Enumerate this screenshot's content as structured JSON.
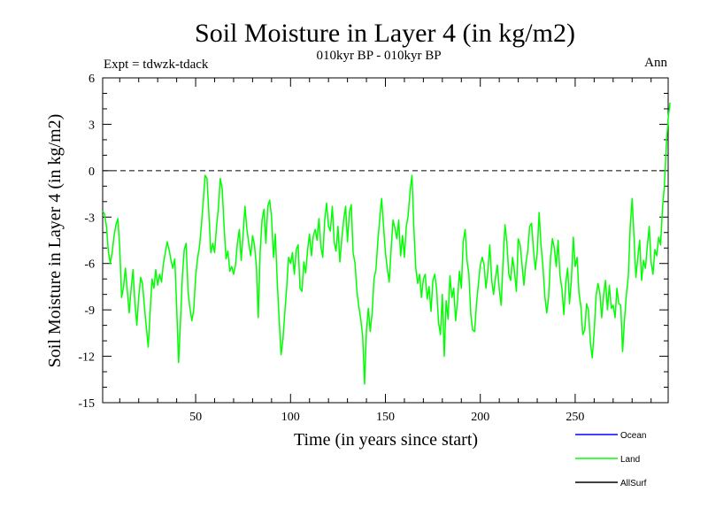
{
  "chart_data": {
    "type": "line",
    "title": "Soil Moisture in Layer 4 (in kg/m2)",
    "subtitle": "010kyr BP - 010kyr BP",
    "expt_label": "Expt = tdwzk-tdack",
    "period_label": "Ann",
    "xlabel": "Time (in years since start)",
    "ylabel": "Soil Moisture in Layer 4 (in kg/m2)",
    "xlim": [
      1,
      299
    ],
    "ylim": [
      -15,
      6
    ],
    "x_ticks": [
      50,
      100,
      150,
      200,
      250
    ],
    "y_ticks": [
      6,
      3,
      0,
      -3,
      -6,
      -9,
      -12,
      -15
    ],
    "reference_line": {
      "y": 0,
      "style": "dashed",
      "color": "#000000"
    },
    "legend": [
      {
        "name": "Ocean",
        "color": "#0000ff"
      },
      {
        "name": "Land",
        "color": "#00ff00"
      },
      {
        "name": "AllSurf",
        "color": "#000000"
      }
    ],
    "series": [
      {
        "name": "Land",
        "color": "#00ff00",
        "x_start": 1,
        "x_step": 1,
        "values": [
          -2.6,
          -2.8,
          -3.6,
          -5.2,
          -6.0,
          -5.3,
          -4.2,
          -3.5,
          -3.1,
          -5.0,
          -8.2,
          -7.5,
          -6.3,
          -7.8,
          -9.2,
          -7.6,
          -6.4,
          -8.6,
          -10.0,
          -8.2,
          -6.9,
          -7.3,
          -8.8,
          -10.1,
          -11.4,
          -9.2,
          -7.0,
          -7.6,
          -6.4,
          -7.4,
          -6.7,
          -7.2,
          -6.0,
          -5.3,
          -4.6,
          -5.1,
          -5.8,
          -6.3,
          -5.7,
          -8.8,
          -12.4,
          -9.8,
          -6.8,
          -5.1,
          -4.7,
          -7.8,
          -8.9,
          -9.7,
          -9.0,
          -6.8,
          -5.7,
          -4.9,
          -3.6,
          -2.0,
          -0.3,
          -0.5,
          -2.9,
          -5.3,
          -4.7,
          -5.3,
          -3.6,
          -2.4,
          -0.5,
          -1.2,
          -3.6,
          -5.7,
          -5.2,
          -6.5,
          -6.2,
          -6.7,
          -6.1,
          -4.7,
          -3.8,
          -5.8,
          -4.1,
          -2.3,
          -3.8,
          -4.7,
          -5.5,
          -4.2,
          -4.8,
          -6.2,
          -9.5,
          -5.2,
          -3.2,
          -2.5,
          -4.7,
          -2.3,
          -1.9,
          -3.0,
          -5.6,
          -4.1,
          -7.2,
          -9.6,
          -11.9,
          -10.9,
          -9.1,
          -7.5,
          -5.6,
          -6.0,
          -5.3,
          -6.7,
          -5.1,
          -4.8,
          -7.6,
          -7.8,
          -5.9,
          -6.6,
          -5.1,
          -4.1,
          -5.5,
          -4.2,
          -3.8,
          -4.5,
          -3.1,
          -4.9,
          -5.6,
          -3.2,
          -2.1,
          -3.6,
          -3.9,
          -2.3,
          -4.6,
          -5.2,
          -3.6,
          -5.9,
          -4.4,
          -3.2,
          -2.3,
          -4.6,
          -2.7,
          -2.2,
          -5.3,
          -6.0,
          -7.8,
          -8.8,
          -9.6,
          -10.7,
          -13.8,
          -10.3,
          -8.9,
          -10.4,
          -9.2,
          -7.0,
          -6.4,
          -4.6,
          -3.1,
          -1.8,
          -3.6,
          -5.3,
          -6.3,
          -7.2,
          -5.1,
          -3.2,
          -3.7,
          -4.4,
          -3.2,
          -5.5,
          -4.2,
          -5.6,
          -3.6,
          -2.9,
          -1.3,
          -0.3,
          -3.8,
          -6.3,
          -7.3,
          -6.7,
          -8.2,
          -7.0,
          -6.7,
          -8.3,
          -7.5,
          -9.1,
          -7.1,
          -6.7,
          -7.7,
          -9.8,
          -10.6,
          -8.0,
          -12.0,
          -8.4,
          -9.6,
          -6.8,
          -8.2,
          -7.6,
          -9.7,
          -8.4,
          -6.5,
          -7.6,
          -4.6,
          -3.8,
          -5.8,
          -6.7,
          -9.3,
          -10.3,
          -10.4,
          -8.6,
          -7.3,
          -6.1,
          -5.6,
          -6.1,
          -7.6,
          -6.5,
          -4.8,
          -7.1,
          -8.0,
          -6.9,
          -6.1,
          -7.7,
          -8.7,
          -5.9,
          -3.5,
          -4.6,
          -6.7,
          -7.1,
          -5.6,
          -6.5,
          -7.8,
          -4.4,
          -4.8,
          -6.1,
          -7.4,
          -6.0,
          -5.2,
          -3.6,
          -3.4,
          -5.1,
          -6.4,
          -5.3,
          -2.7,
          -4.8,
          -6.2,
          -8.1,
          -9.2,
          -8.2,
          -5.6,
          -4.4,
          -5.0,
          -6.2,
          -4.5,
          -6.8,
          -7.6,
          -9.3,
          -7.3,
          -6.3,
          -8.6,
          -7.1,
          -4.3,
          -6.2,
          -5.6,
          -7.9,
          -8.8,
          -10.6,
          -10.3,
          -8.6,
          -9.0,
          -11.1,
          -12.1,
          -10.4,
          -8.1,
          -7.3,
          -7.9,
          -9.5,
          -8.0,
          -7.1,
          -9.0,
          -7.4,
          -8.9,
          -8.7,
          -9.5,
          -7.6,
          -8.6,
          -8.7,
          -11.7,
          -9.6,
          -8.0,
          -6.8,
          -3.6,
          -1.8,
          -4.3,
          -6.9,
          -5.6,
          -4.5,
          -7.1,
          -5.8,
          -6.3,
          -4.9,
          -3.6,
          -5.9,
          -6.7,
          -5.1,
          -5.5,
          -4.3,
          -4.8,
          -2.4,
          -1.0,
          1.6,
          3.4,
          4.4
        ]
      }
    ]
  }
}
